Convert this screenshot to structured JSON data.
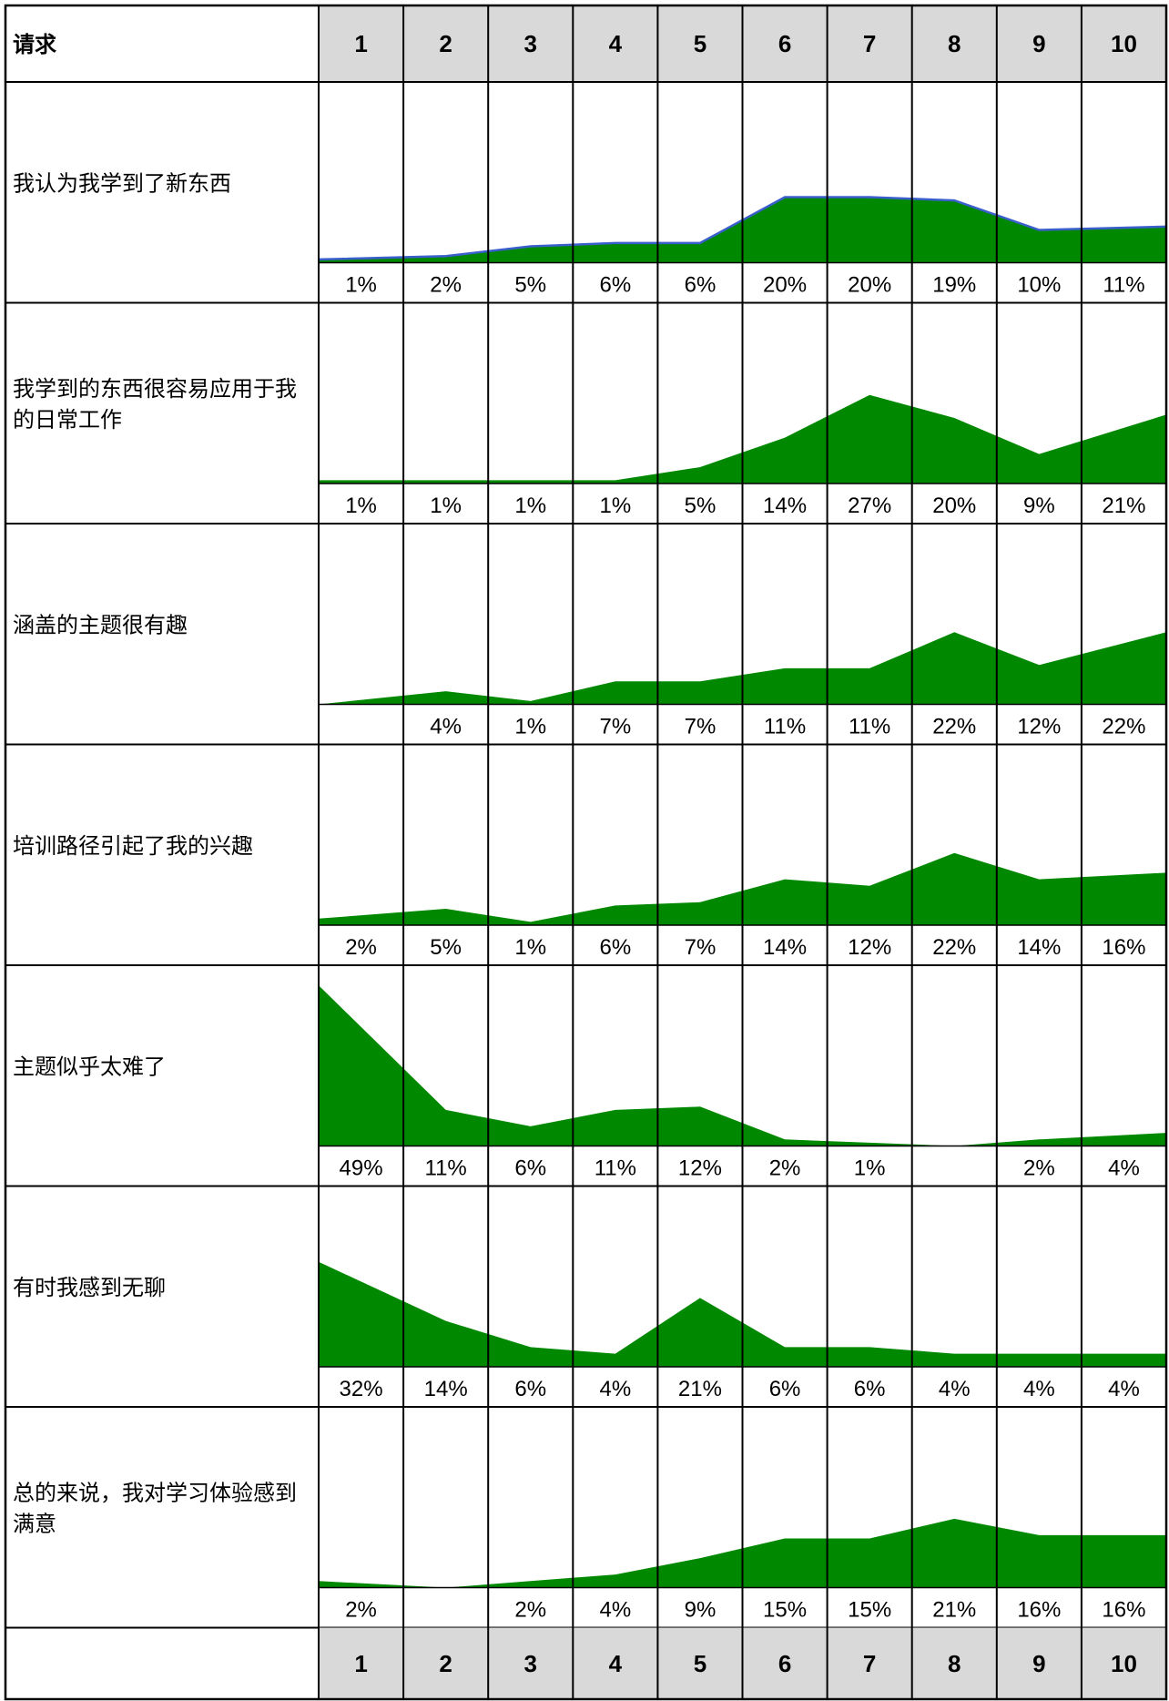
{
  "header": {
    "label": "请求",
    "scores": [
      "1",
      "2",
      "3",
      "4",
      "5",
      "6",
      "7",
      "8",
      "9",
      "10"
    ]
  },
  "footer": {
    "label": "",
    "scores": [
      "1",
      "2",
      "3",
      "4",
      "5",
      "6",
      "7",
      "8",
      "9",
      "10"
    ]
  },
  "colors": {
    "fill": "#008800",
    "line": "#3a5fcd",
    "header_bg": "#d9d9d9",
    "grid": "#000000"
  },
  "chart_data": {
    "type": "area",
    "categories": [
      "1",
      "2",
      "3",
      "4",
      "5",
      "6",
      "7",
      "8",
      "9",
      "10"
    ],
    "ylim": [
      0,
      100
    ],
    "series": [
      {
        "name": "我认为我学到了新东西",
        "values": [
          1,
          2,
          5,
          6,
          6,
          20,
          20,
          19,
          10,
          11
        ],
        "labels": [
          "1%",
          "2%",
          "5%",
          "6%",
          "6%",
          "20%",
          "20%",
          "19%",
          "10%",
          "11%"
        ],
        "outlined": true
      },
      {
        "name": "我学到的东西很容易应用于我的日常工作",
        "values": [
          1,
          1,
          1,
          1,
          5,
          14,
          27,
          20,
          9,
          21
        ],
        "labels": [
          "1%",
          "1%",
          "1%",
          "1%",
          "5%",
          "14%",
          "27%",
          "20%",
          "9%",
          "21%"
        ]
      },
      {
        "name": "涵盖的主题很有趣",
        "values": [
          0,
          4,
          1,
          7,
          7,
          11,
          11,
          22,
          12,
          22
        ],
        "labels": [
          "",
          "4%",
          "1%",
          "7%",
          "7%",
          "11%",
          "11%",
          "22%",
          "12%",
          "22%"
        ]
      },
      {
        "name": "培训路径引起了我的兴趣",
        "values": [
          2,
          5,
          1,
          6,
          7,
          14,
          12,
          22,
          14,
          16
        ],
        "labels": [
          "2%",
          "5%",
          "1%",
          "6%",
          "7%",
          "14%",
          "12%",
          "22%",
          "14%",
          "16%"
        ]
      },
      {
        "name": "主题似乎太难了",
        "values": [
          49,
          11,
          6,
          11,
          12,
          2,
          1,
          0,
          2,
          4
        ],
        "labels": [
          "49%",
          "11%",
          "6%",
          "11%",
          "12%",
          "2%",
          "1%",
          "",
          "2%",
          "4%"
        ]
      },
      {
        "name": "有时我感到无聊",
        "values": [
          32,
          14,
          6,
          4,
          21,
          6,
          6,
          4,
          4,
          4
        ],
        "labels": [
          "32%",
          "14%",
          "6%",
          "4%",
          "21%",
          "6%",
          "6%",
          "4%",
          "4%",
          "4%"
        ]
      },
      {
        "name": "总的来说，我对学习体验感到满意",
        "values": [
          2,
          0,
          2,
          4,
          9,
          15,
          15,
          21,
          16,
          16
        ],
        "labels": [
          "2%",
          "",
          "2%",
          "4%",
          "9%",
          "15%",
          "15%",
          "21%",
          "16%",
          "16%"
        ]
      }
    ]
  }
}
